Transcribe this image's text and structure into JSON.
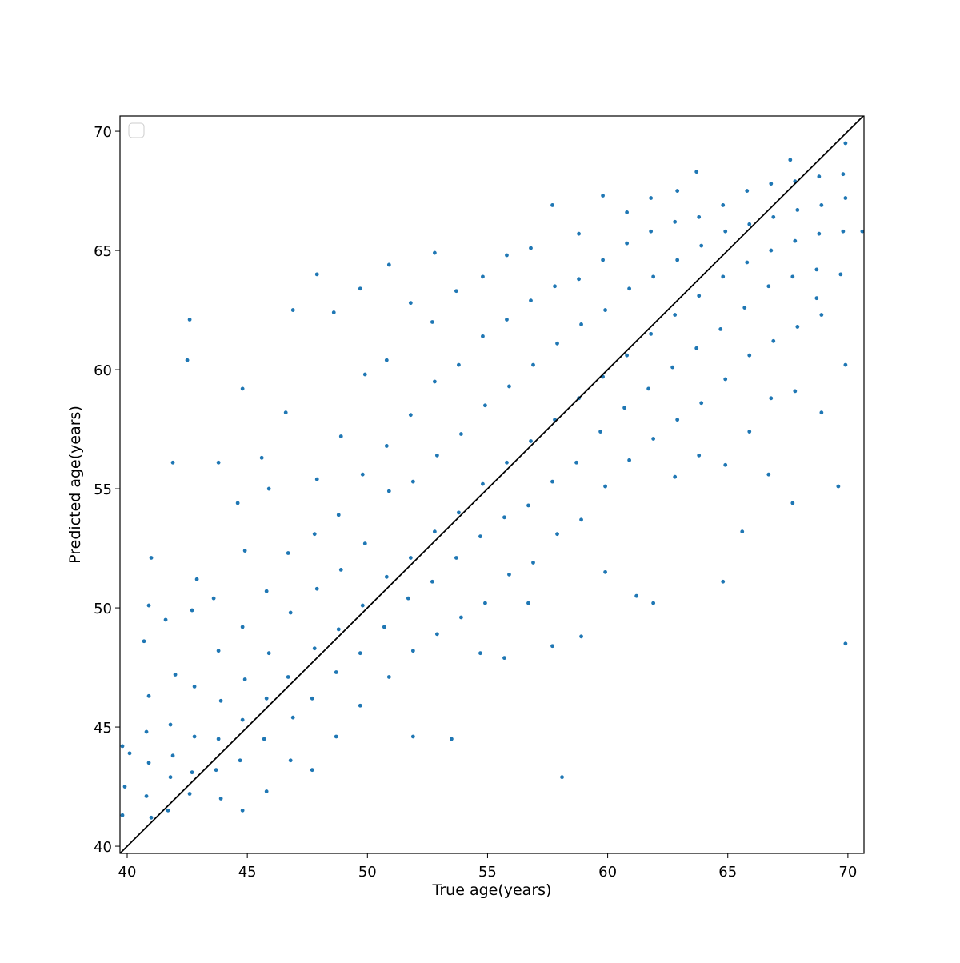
{
  "chart_data": {
    "type": "scatter",
    "x_label": "True age(years)",
    "y_label": "Predicted age(years)",
    "color": "#1f77b4",
    "xlim": [
      39.7,
      70.67
    ],
    "ylim": [
      39.7,
      70.64
    ],
    "xticks": [
      40,
      45,
      50,
      55,
      60,
      65,
      70
    ],
    "yticks": [
      40,
      45,
      50,
      55,
      60,
      65,
      70
    ],
    "grid": false,
    "legend": "upper left",
    "x": [
      39.8,
      39.9,
      40.1,
      39.8,
      40.8,
      40.9,
      40.8,
      41.0,
      40.9,
      40.7,
      40.9,
      41.0,
      41.8,
      41.9,
      41.7,
      41.8,
      42.0,
      41.6,
      41.9,
      42.7,
      42.8,
      42.6,
      42.8,
      42.7,
      42.9,
      42.6,
      42.5,
      43.8,
      43.7,
      43.9,
      43.8,
      43.6,
      43.9,
      43.8,
      44.8,
      44.9,
      44.7,
      44.8,
      44.9,
      44.6,
      44.8,
      44.8,
      45.8,
      45.9,
      45.7,
      45.8,
      45.9,
      45.6,
      45.8,
      46.7,
      46.8,
      46.9,
      46.7,
      46.8,
      46.6,
      46.9,
      47.8,
      47.9,
      47.7,
      47.8,
      47.9,
      47.7,
      47.9,
      48.8,
      48.9,
      48.7,
      48.8,
      48.9,
      48.7,
      48.6,
      49.8,
      49.9,
      49.7,
      49.8,
      49.9,
      49.7,
      49.7,
      50.8,
      50.9,
      50.7,
      50.8,
      50.9,
      50.8,
      50.9,
      51.8,
      51.9,
      51.7,
      51.8,
      51.9,
      51.8,
      51.9,
      52.8,
      52.9,
      52.7,
      52.8,
      52.9,
      52.7,
      52.8,
      53.8,
      53.9,
      53.7,
      53.8,
      53.9,
      53.7,
      53.5,
      54.8,
      54.9,
      54.7,
      54.8,
      54.9,
      54.8,
      54.7,
      55.8,
      55.9,
      55.7,
      55.8,
      55.9,
      55.8,
      55.7,
      56.8,
      56.9,
      56.7,
      56.8,
      56.9,
      56.8,
      56.7,
      57.8,
      57.9,
      57.7,
      57.8,
      57.9,
      57.7,
      58.1,
      57.7,
      58.8,
      58.9,
      58.7,
      58.8,
      58.9,
      58.8,
      58.9,
      59.8,
      59.9,
      59.7,
      59.8,
      59.9,
      59.8,
      59.9,
      60.8,
      60.9,
      60.7,
      60.8,
      60.9,
      60.8,
      61.2,
      61.8,
      61.9,
      61.7,
      61.8,
      61.9,
      61.8,
      61.9,
      62.8,
      62.9,
      62.7,
      62.8,
      62.9,
      62.8,
      62.9,
      63.8,
      63.9,
      63.7,
      63.8,
      63.9,
      63.8,
      63.7,
      64.8,
      64.9,
      64.7,
      64.8,
      64.9,
      64.8,
      64.9,
      65.8,
      65.9,
      65.7,
      65.8,
      65.9,
      65.6,
      65.9,
      66.8,
      66.9,
      66.7,
      66.8,
      66.9,
      66.7,
      66.8,
      67.8,
      67.9,
      67.7,
      67.8,
      67.9,
      67.7,
      67.8,
      67.6,
      68.8,
      68.9,
      68.7,
      68.8,
      68.9,
      68.9,
      68.7,
      69.8,
      69.9,
      69.7,
      69.8,
      69.9,
      69.9,
      69.6,
      69.9,
      70.6
    ],
    "values": [
      44.2,
      42.5,
      43.9,
      41.3,
      42.1,
      43.5,
      44.8,
      41.2,
      46.3,
      48.6,
      50.1,
      52.1,
      42.9,
      43.8,
      41.5,
      45.1,
      47.2,
      49.5,
      56.1,
      43.1,
      44.6,
      42.2,
      46.7,
      49.9,
      51.2,
      62.1,
      60.4,
      44.5,
      43.2,
      46.1,
      48.2,
      50.4,
      42.0,
      56.1,
      45.3,
      47.0,
      43.6,
      49.2,
      52.4,
      54.4,
      59.2,
      41.5,
      46.2,
      48.1,
      44.5,
      50.7,
      55.0,
      56.3,
      42.3,
      47.1,
      49.8,
      45.4,
      52.3,
      43.6,
      58.2,
      62.5,
      48.3,
      50.8,
      46.2,
      53.1,
      55.4,
      43.2,
      64.0,
      49.1,
      51.6,
      47.3,
      53.9,
      57.2,
      44.6,
      62.4,
      50.1,
      52.7,
      48.1,
      55.6,
      59.8,
      45.9,
      63.4,
      51.3,
      54.9,
      49.2,
      56.8,
      47.1,
      60.4,
      64.4,
      52.1,
      55.3,
      50.4,
      58.1,
      48.2,
      62.8,
      44.6,
      53.2,
      56.4,
      51.1,
      59.5,
      48.9,
      62.0,
      64.9,
      54.0,
      57.3,
      52.1,
      60.2,
      49.6,
      63.3,
      44.5,
      55.2,
      58.5,
      53.0,
      61.4,
      50.2,
      63.9,
      48.1,
      56.1,
      59.3,
      53.8,
      62.1,
      51.4,
      64.8,
      47.9,
      57.0,
      60.2,
      54.3,
      62.9,
      51.9,
      65.1,
      50.2,
      57.9,
      61.1,
      55.3,
      63.5,
      53.1,
      66.9,
      42.9,
      48.4,
      58.8,
      61.9,
      56.1,
      63.8,
      53.7,
      65.7,
      48.8,
      59.7,
      62.5,
      57.4,
      64.6,
      55.1,
      67.3,
      51.5,
      60.6,
      63.4,
      58.4,
      65.3,
      56.2,
      66.6,
      50.5,
      61.5,
      63.9,
      59.2,
      65.8,
      57.1,
      67.2,
      50.2,
      62.3,
      64.6,
      60.1,
      66.2,
      57.9,
      55.5,
      67.5,
      63.1,
      65.2,
      60.9,
      66.4,
      58.6,
      56.4,
      68.3,
      63.9,
      65.8,
      61.7,
      66.9,
      59.6,
      51.1,
      56.0,
      64.5,
      66.1,
      62.6,
      67.5,
      60.6,
      53.2,
      57.4,
      65.0,
      66.4,
      63.5,
      67.8,
      61.2,
      55.6,
      58.8,
      65.4,
      66.7,
      63.9,
      67.9,
      61.8,
      54.4,
      59.1,
      68.8,
      65.7,
      66.9,
      64.2,
      68.1,
      62.3,
      58.2,
      63.0,
      65.8,
      67.2,
      64.0,
      68.2,
      60.2,
      48.5,
      55.1,
      69.5,
      65.8
    ]
  }
}
